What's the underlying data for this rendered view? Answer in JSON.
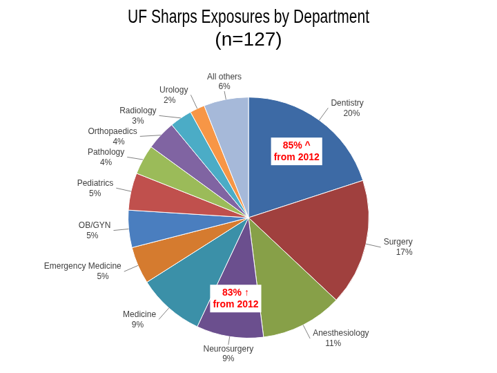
{
  "chart_data": {
    "type": "pie",
    "title": [
      "UF Sharps Exposures by Department",
      "(n=127)"
    ],
    "categories": [
      "Dentistry",
      "Surgery",
      "Anesthesiology",
      "Neurosurgery",
      "Medicine",
      "Emergency Medicine",
      "OB/GYN",
      "Pediatrics",
      "Pathology",
      "Orthopaedics",
      "Radiology",
      "Urology",
      "All others"
    ],
    "values": [
      20,
      17,
      11,
      9,
      9,
      5,
      5,
      5,
      4,
      4,
      3,
      2,
      6
    ],
    "value_labels": [
      "20%",
      "17%",
      "11%",
      "9%",
      "9%",
      "5%",
      "5%",
      "5%",
      "4%",
      "4%",
      "3%",
      "2%",
      "6%"
    ],
    "colors": [
      "#3d6aa5",
      "#a0403e",
      "#87a048",
      "#6b4f8e",
      "#3b90a8",
      "#d57b2f",
      "#4a7ebf",
      "#c0504d",
      "#9bbb59",
      "#8064a2",
      "#4bacc6",
      "#f79646",
      "#a6b9d9"
    ],
    "data_labels": true,
    "annotations": [
      {
        "text": [
          "85% ^",
          "from 2012"
        ],
        "category": "Dentistry"
      },
      {
        "text": [
          "83% ↑",
          "from 2012"
        ],
        "category": "Neurosurgery"
      }
    ]
  }
}
